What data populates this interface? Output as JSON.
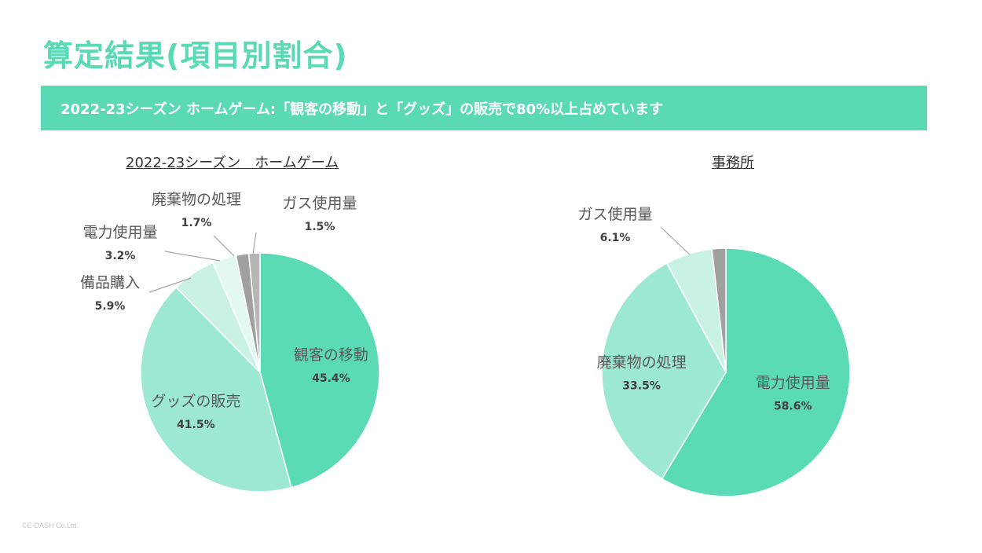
{
  "page": {
    "title": "算定結果(項目別割合)",
    "banner": "2022-23シーズン ホームゲーム:「観客の移動」と「グッズ」の販売で80%以上占めています",
    "copyright": "©E-DASH Co.Ltd."
  },
  "chart_data": [
    {
      "type": "pie",
      "title": "2022-23シーズン　ホームゲーム",
      "start": "12 o'clock, clockwise",
      "slices": [
        {
          "label": "観客の移動",
          "value": 45.4,
          "pct_label": "45.4%",
          "color": "#5adbb5"
        },
        {
          "label": "グッズの販売",
          "value": 41.5,
          "pct_label": "41.5%",
          "color": "#9de8d2"
        },
        {
          "label": "備品購入",
          "value": 5.9,
          "pct_label": "5.9%",
          "color": "#c9f2e4"
        },
        {
          "label": "電力使用量",
          "value": 3.2,
          "pct_label": "3.2%",
          "color": "#e2f8f0"
        },
        {
          "label": "廃棄物の処理",
          "value": 1.7,
          "pct_label": "1.7%",
          "color": "#a0a0a0"
        },
        {
          "label": "ガス使用量",
          "value": 1.5,
          "pct_label": "1.5%",
          "color": "#b6b6b6"
        }
      ]
    },
    {
      "type": "pie",
      "title": "事務所",
      "start": "12 o'clock, clockwise",
      "slices": [
        {
          "label": "電力使用量",
          "value": 58.6,
          "pct_label": "58.6%",
          "color": "#5adbb5"
        },
        {
          "label": "廃棄物の処理",
          "value": 33.5,
          "pct_label": "33.5%",
          "color": "#9de8d2"
        },
        {
          "label": "ガス使用量",
          "value": 6.1,
          "pct_label": "6.1%",
          "color": "#c9f2e4"
        },
        {
          "label": "",
          "value": 1.8,
          "pct_label": "",
          "color": "#a0a0a0"
        }
      ]
    }
  ]
}
